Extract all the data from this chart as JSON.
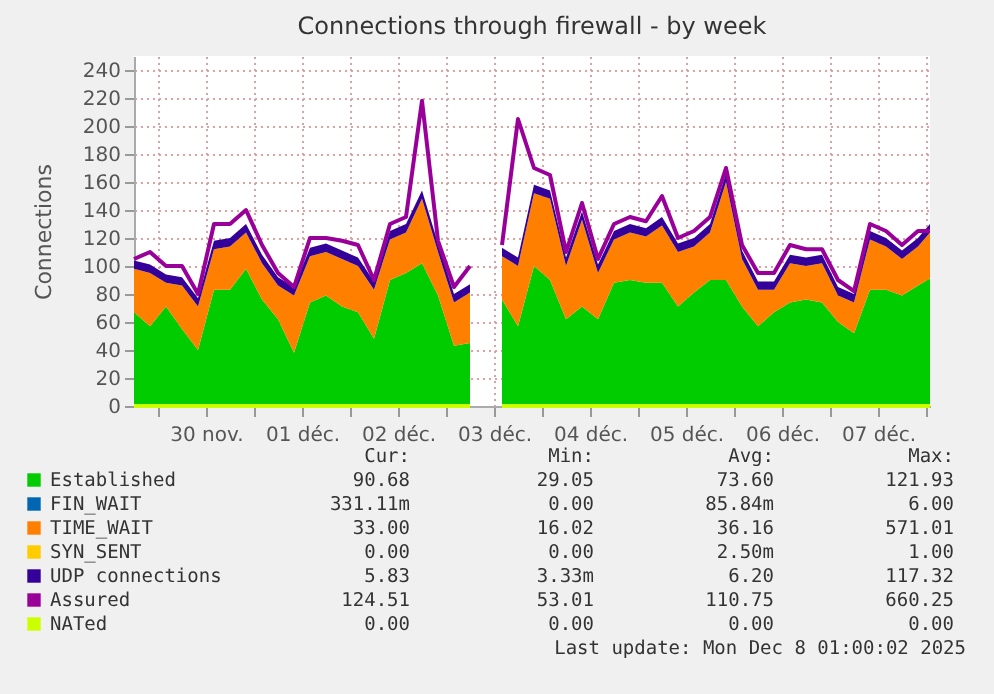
{
  "chart_data": {
    "type": "area",
    "title": "Connections through firewall - by week",
    "ylabel": "Connections",
    "stacked": true,
    "grid": true,
    "legend": "bottom",
    "marker": "none",
    "x": [
      "2025-11-29T18:00",
      "2025-11-29T22:00",
      "2025-11-30T02:00",
      "2025-11-30T06:00",
      "2025-11-30T10:00",
      "2025-11-30T14:00",
      "2025-11-30T18:00",
      "2025-11-30T22:00",
      "2025-12-01T02:00",
      "2025-12-01T06:00",
      "2025-12-01T10:00",
      "2025-12-01T14:00",
      "2025-12-01T18:00",
      "2025-12-01T22:00",
      "2025-12-02T02:00",
      "2025-12-02T06:00",
      "2025-12-02T10:00",
      "2025-12-02T14:00",
      "2025-12-02T18:00",
      "2025-12-02T22:00",
      "2025-12-03T02:00",
      "2025-12-03T06:00",
      "2025-12-03T10:00",
      "2025-12-03T14:00",
      "2025-12-03T18:00",
      "2025-12-03T22:00",
      "2025-12-04T02:00",
      "2025-12-04T06:00",
      "2025-12-04T10:00",
      "2025-12-04T14:00",
      "2025-12-04T18:00",
      "2025-12-04T22:00",
      "2025-12-05T02:00",
      "2025-12-05T06:00",
      "2025-12-05T10:00",
      "2025-12-05T14:00",
      "2025-12-05T18:00",
      "2025-12-05T22:00",
      "2025-12-06T02:00",
      "2025-12-06T06:00",
      "2025-12-06T10:00",
      "2025-12-06T14:00",
      "2025-12-06T18:00",
      "2025-12-06T22:00",
      "2025-12-07T02:00",
      "2025-12-07T06:00",
      "2025-12-07T10:00",
      "2025-12-07T14:00",
      "2025-12-07T18:00",
      "2025-12-07T22:00",
      "2025-12-08T01:00"
    ],
    "xlim": [
      "2025-11-29T18:00",
      "2025-12-08T01:00"
    ],
    "xticks": [
      {
        "value": "2025-11-30T00:00",
        "label": null
      },
      {
        "value": "2025-11-30T12:00",
        "label": "30 nov."
      },
      {
        "value": "2025-12-01T00:00",
        "label": null
      },
      {
        "value": "2025-12-01T12:00",
        "label": "01 déc."
      },
      {
        "value": "2025-12-02T00:00",
        "label": null
      },
      {
        "value": "2025-12-02T12:00",
        "label": "02 déc."
      },
      {
        "value": "2025-12-03T00:00",
        "label": null
      },
      {
        "value": "2025-12-03T12:00",
        "label": "03 déc."
      },
      {
        "value": "2025-12-04T00:00",
        "label": null
      },
      {
        "value": "2025-12-04T12:00",
        "label": "04 déc."
      },
      {
        "value": "2025-12-05T00:00",
        "label": null
      },
      {
        "value": "2025-12-05T12:00",
        "label": "05 déc."
      },
      {
        "value": "2025-12-06T00:00",
        "label": null
      },
      {
        "value": "2025-12-06T12:00",
        "label": "06 déc."
      },
      {
        "value": "2025-12-07T00:00",
        "label": null
      },
      {
        "value": "2025-12-07T12:00",
        "label": "07 déc."
      },
      {
        "value": "2025-12-08T00:00",
        "label": null
      }
    ],
    "ylim": [
      0,
      250
    ],
    "yticks": [
      0,
      20,
      40,
      60,
      80,
      100,
      120,
      140,
      160,
      180,
      200,
      220,
      240
    ],
    "series": [
      {
        "name": "Established",
        "color": "#00cc00",
        "values": [
          67,
          57,
          71,
          55,
          40,
          83,
          83,
          98,
          76,
          62,
          38,
          74,
          79,
          71,
          67,
          48,
          90,
          95,
          102,
          79,
          43,
          45,
          null,
          76,
          57,
          100,
          90,
          62,
          71,
          62,
          88,
          90,
          88,
          88,
          71,
          81,
          90,
          90,
          71,
          57,
          67,
          74,
          76,
          74,
          60,
          52,
          83,
          83,
          79,
          86,
          91
        ]
      },
      {
        "name": "FIN_WAIT",
        "color": "#0066b3",
        "values": [
          null,
          null,
          null,
          null,
          null,
          null,
          null,
          null,
          null,
          null,
          null,
          null,
          null,
          null,
          null,
          null,
          null,
          null,
          null,
          null,
          null,
          null,
          null,
          null,
          null,
          null,
          null,
          null,
          null,
          null,
          null,
          null,
          null,
          null,
          null,
          null,
          null,
          null,
          null,
          null,
          null,
          null,
          null,
          null,
          null,
          null,
          null,
          null,
          null,
          null,
          null
        ]
      },
      {
        "name": "TIME_WAIT",
        "color": "#ff8000",
        "values": [
          31,
          38,
          17,
          31,
          31,
          29,
          31,
          26,
          26,
          24,
          41,
          33,
          31,
          34,
          33,
          35,
          29,
          29,
          46,
          31,
          31,
          36,
          null,
          31,
          43,
          52,
          58,
          38,
          62,
          33,
          31,
          34,
          33,
          41,
          39,
          33,
          34,
          70,
          34,
          26,
          16,
          28,
          24,
          28,
          19,
          22,
          36,
          31,
          26,
          28,
          33
        ]
      },
      {
        "name": "SYN_SENT",
        "color": "#ffcc00",
        "values": [
          null,
          null,
          null,
          null,
          null,
          null,
          null,
          null,
          null,
          null,
          null,
          null,
          null,
          null,
          null,
          null,
          null,
          null,
          null,
          null,
          null,
          null,
          null,
          null,
          null,
          null,
          null,
          null,
          null,
          null,
          null,
          null,
          null,
          null,
          null,
          null,
          null,
          null,
          null,
          null,
          null,
          null,
          null,
          null,
          null,
          null,
          null,
          null,
          null,
          null,
          null
        ]
      },
      {
        "name": "UDP connections",
        "color": "#330099",
        "values": [
          6,
          6,
          6,
          6,
          6,
          6,
          6,
          6,
          6,
          6,
          6,
          6,
          6,
          6,
          6,
          6,
          6,
          6,
          6,
          6,
          6,
          6,
          null,
          6,
          6,
          6,
          6,
          6,
          6,
          6,
          6,
          6,
          6,
          6,
          6,
          6,
          6,
          6,
          6,
          6,
          6,
          6,
          6,
          6,
          6,
          6,
          6,
          6,
          6,
          6,
          6
        ]
      },
      {
        "name": "Assured",
        "type": "line",
        "color": "#990099",
        "values": [
          105,
          110,
          100,
          100,
          80,
          130,
          130,
          140,
          115,
          95,
          85,
          120,
          120,
          118,
          115,
          90,
          130,
          135,
          218,
          118,
          85,
          100,
          null,
          115,
          205,
          170,
          165,
          110,
          145,
          105,
          130,
          135,
          132,
          150,
          120,
          125,
          135,
          170,
          115,
          95,
          95,
          115,
          112,
          112,
          90,
          82,
          130,
          125,
          115,
          125,
          125
        ]
      },
      {
        "name": "NATed",
        "type": "line",
        "color": "#ccff00",
        "values": [
          0,
          0,
          0,
          0,
          0,
          0,
          0,
          0,
          0,
          0,
          0,
          0,
          0,
          0,
          0,
          0,
          0,
          0,
          0,
          0,
          0,
          0,
          null,
          0,
          0,
          0,
          0,
          0,
          0,
          0,
          0,
          0,
          0,
          0,
          0,
          0,
          0,
          0,
          0,
          0,
          0,
          0,
          0,
          0,
          0,
          0,
          0,
          0,
          0,
          0,
          0
        ]
      }
    ],
    "annotations": [
      "Cur:",
      "Min:",
      "Avg:",
      "Max:",
      "90.68",
      "29.05",
      "73.60",
      "121.93",
      "331.11m",
      "0.00",
      "85.84m",
      "6.00",
      "33.00",
      "16.02",
      "36.16",
      "571.01",
      "0.00",
      "0.00",
      "2.50m",
      "1.00",
      "5.83",
      "3.33m",
      "6.20",
      "117.32",
      "124.51",
      "53.01",
      "110.75",
      "660.25",
      "0.00",
      "0.00",
      "0.00",
      "0.00",
      "Last update: Mon Dec  8 01:00:02 2025"
    ]
  }
}
